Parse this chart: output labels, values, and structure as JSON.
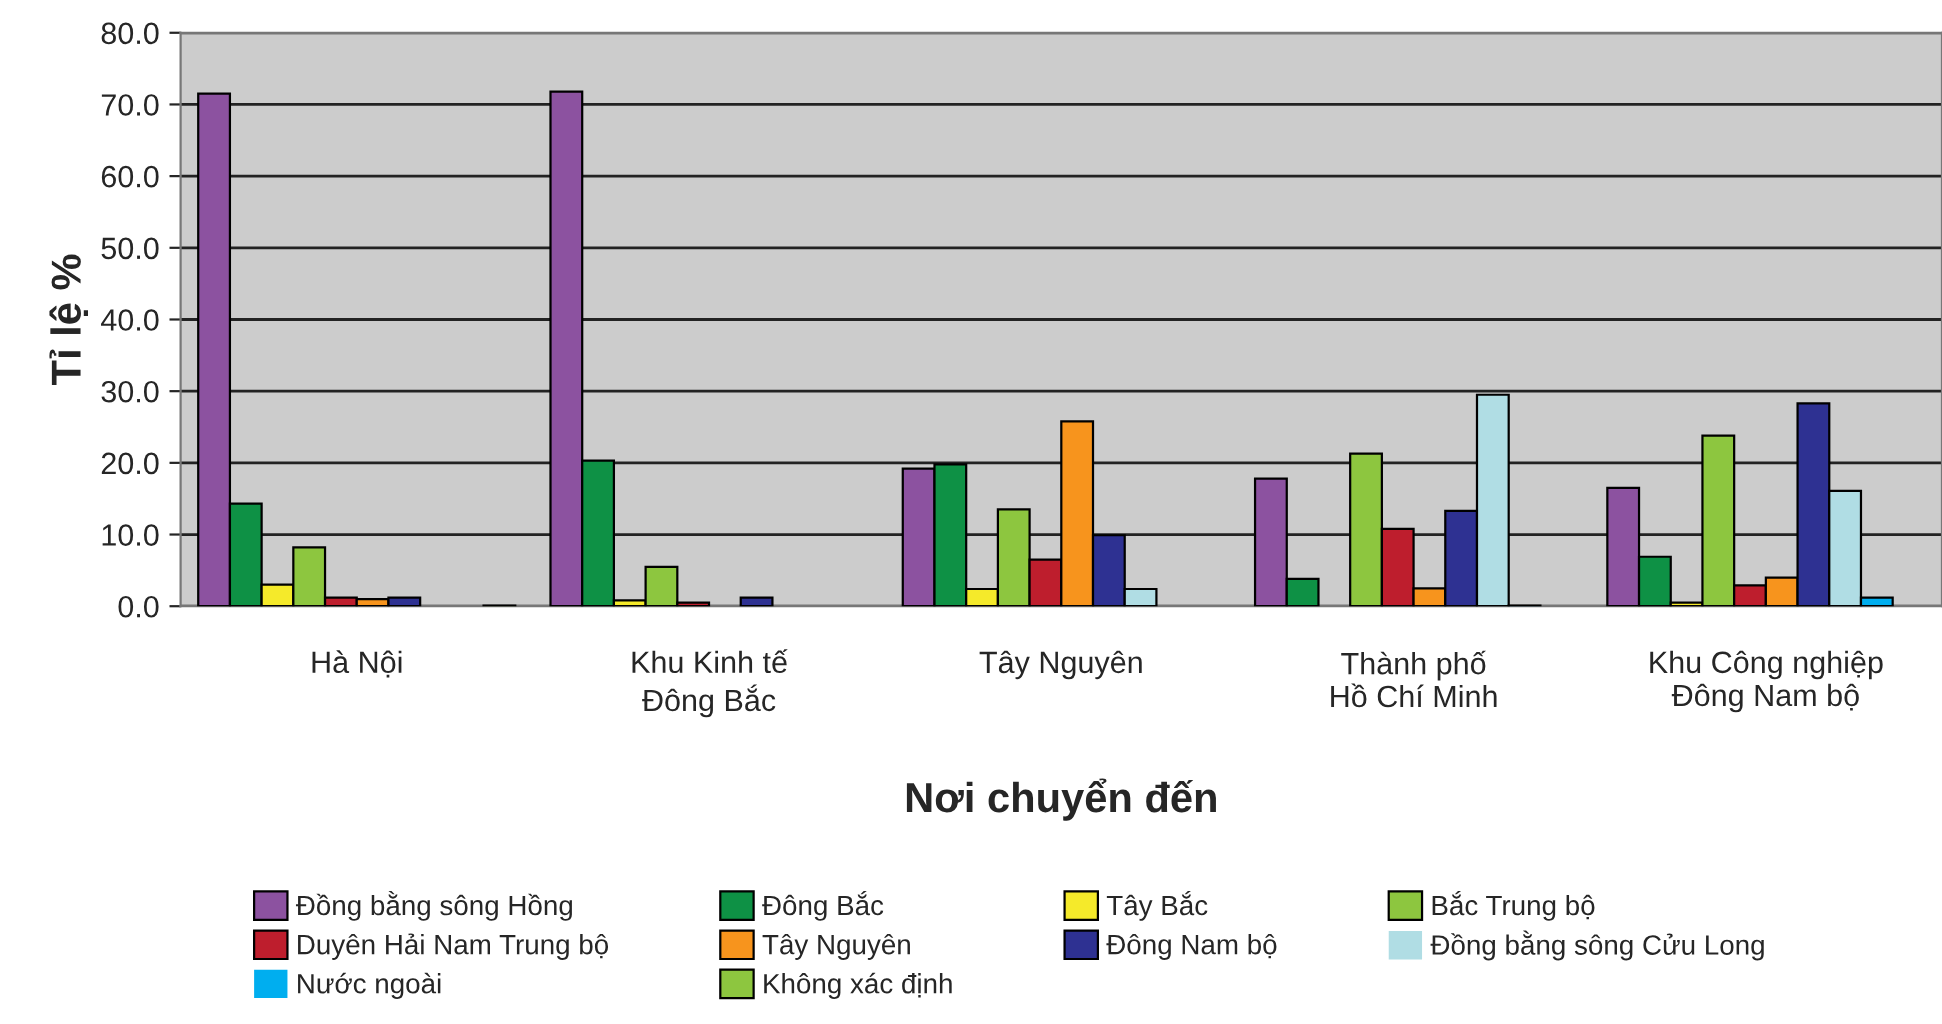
{
  "chart_data": {
    "type": "bar",
    "xlabel": "Nơi chuyển đến",
    "ylabel": "Tỉ lệ %",
    "categories": [
      "Hà Nội",
      "Khu Kinh tế\nĐông Bắc",
      "Tây Nguyên",
      "Thành phố\nHồ Chí Minh",
      "Khu Công nghiệp\nĐông Nam bộ"
    ],
    "series": [
      {
        "name": "Đồng bằng sông Hồng",
        "color": "#8c52a0",
        "values": [
          71.5,
          71.8,
          19.2,
          17.8,
          16.5
        ]
      },
      {
        "name": "Đông Bắc",
        "color": "#0e9145",
        "values": [
          14.3,
          20.3,
          19.8,
          3.8,
          6.9
        ]
      },
      {
        "name": "Tây Bắc",
        "color": "#f5ea2a",
        "values": [
          3.0,
          0.8,
          2.4,
          0,
          0.5
        ]
      },
      {
        "name": "Bắc Trung bộ",
        "color": "#8dc63f",
        "values": [
          8.2,
          5.5,
          13.5,
          21.3,
          23.8
        ]
      },
      {
        "name": "Duyên Hải Nam Trung bộ",
        "color": "#be1e2d",
        "values": [
          1.2,
          0.5,
          6.5,
          10.8,
          2.9
        ]
      },
      {
        "name": "Tây Nguyên",
        "color": "#f7941d",
        "values": [
          1.0,
          0,
          25.8,
          2.5,
          4.0
        ]
      },
      {
        "name": "Đông Nam bộ",
        "color": "#2e3192",
        "values": [
          1.2,
          1.2,
          9.9,
          13.3,
          28.3
        ]
      },
      {
        "name": "Đồng bằng sông Cửu Long",
        "color": "#b0dde4",
        "values": [
          null,
          null,
          2.4,
          29.5,
          16.1
        ]
      },
      {
        "name": "Nước ngoài",
        "color": "#00aeef",
        "values": [
          0,
          0,
          0,
          0.1,
          1.2
        ]
      },
      {
        "name": "Không xác định",
        "color": "#8dc63f",
        "values": [
          0.1,
          0,
          0,
          0,
          0
        ]
      }
    ],
    "ylim": [
      0,
      80
    ],
    "yticks": [
      {
        "value": 0,
        "label": "0.0"
      },
      {
        "value": 10,
        "label": "10.0"
      },
      {
        "value": 20,
        "label": "20.0"
      },
      {
        "value": 30,
        "label": "30.0"
      },
      {
        "value": 40,
        "label": "40.0"
      },
      {
        "value": 50,
        "label": "50.0"
      },
      {
        "value": 60,
        "label": "60.0"
      },
      {
        "value": 70,
        "label": "70.0"
      },
      {
        "value": 80,
        "label": "80.0"
      }
    ],
    "grid": "y",
    "legend": "bottom"
  }
}
